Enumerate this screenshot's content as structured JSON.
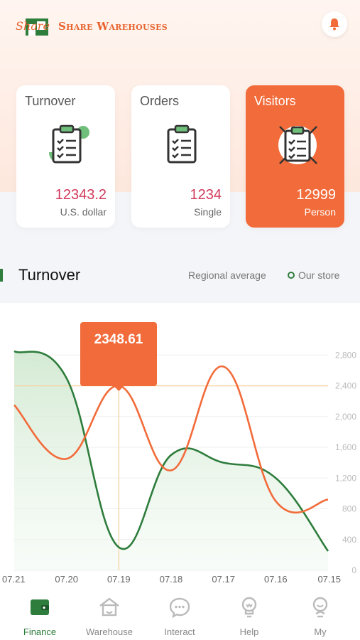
{
  "header": {
    "brand_script": "Share",
    "brand_name": "Share Warehouses",
    "notification_icon": "bell-icon",
    "accent_color": "#e8642f"
  },
  "cards": [
    {
      "title": "Turnover",
      "value": "12343.2",
      "unit": "U.S. dollar",
      "icon": "clipboard-icon",
      "active": false
    },
    {
      "title": "Orders",
      "value": "1234",
      "unit": "Single",
      "icon": "clipboard-icon",
      "active": false
    },
    {
      "title": "Visitors",
      "value": "12999",
      "unit": "Person",
      "icon": "clipboard-icon",
      "active": true
    }
  ],
  "section": {
    "title": "Turnover",
    "legend_regional": "Regional average",
    "legend_store": "Our store"
  },
  "tooltip": {
    "value": "2348.61"
  },
  "chart_data": {
    "type": "line",
    "x": [
      "07.21",
      "07.20",
      "07.19",
      "07.18",
      "07.17",
      "07.16",
      "07.15"
    ],
    "yticks": [
      0,
      400,
      800,
      1200,
      1600,
      2000,
      2400,
      2800
    ],
    "ylim": [
      0,
      3200
    ],
    "series": [
      {
        "name": "Our store",
        "color": "#2e7d3c",
        "fill": true,
        "values": [
          2850,
          2500,
          300,
          1500,
          1400,
          1200,
          250
        ]
      },
      {
        "name": "Regional average",
        "color": "#f26b3a",
        "fill": false,
        "values": [
          2150,
          1450,
          2400,
          1300,
          2650,
          900,
          920
        ]
      }
    ],
    "highlight_index": 2,
    "grid": true,
    "colors": {
      "guide": "#f5d5a8",
      "grid": "#eeeeee",
      "tick": "#bbbbbb",
      "xlabel": "#666666"
    }
  },
  "nav": [
    {
      "label": "Finance",
      "icon": "wallet-icon",
      "active": true
    },
    {
      "label": "Warehouse",
      "icon": "warehouse-icon",
      "active": false
    },
    {
      "label": "Interact",
      "icon": "chat-icon",
      "active": false
    },
    {
      "label": "Help",
      "icon": "lightbulb-icon",
      "active": false
    },
    {
      "label": "My",
      "icon": "user-icon",
      "active": false
    }
  ]
}
